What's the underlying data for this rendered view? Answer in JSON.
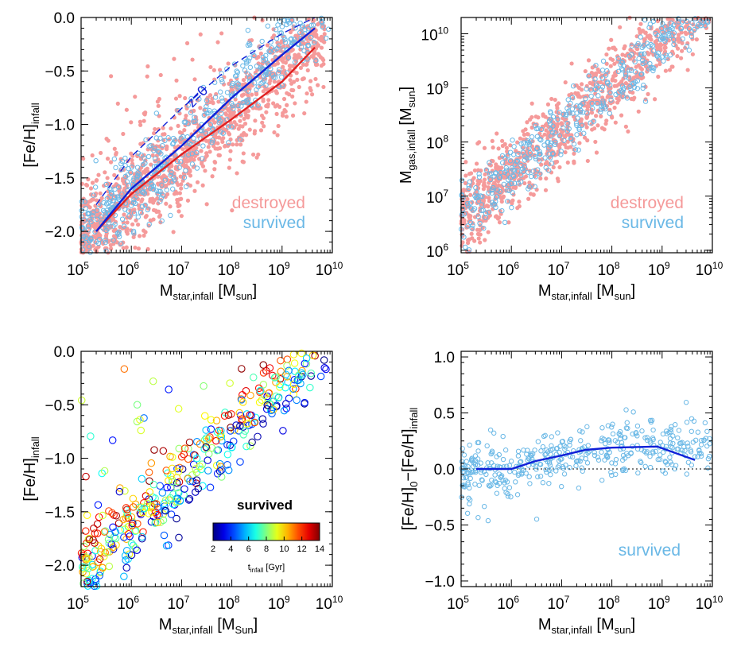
{
  "colors": {
    "destroyed": "#f59a9a",
    "survived": "#6ab8e6",
    "median_destroyed": "#e02020",
    "median_survived": "#1020d8",
    "line_z0": "#1020d8"
  },
  "panels": {
    "top_left": {
      "ylabel": "[Fe/H]",
      "ylabel_sub": "infall",
      "xlabel": "M",
      "xlabel_sub": "star,infall",
      "xlabel_unit": " [M",
      "xlabel_unit_sub": "sun",
      "xlabel_close": "]",
      "legend_destroyed": "destroyed",
      "legend_survived": "survived",
      "annotation": "z=0",
      "yticks": [
        "0.0",
        "−0.5",
        "−1.0",
        "−1.5",
        "−2.0"
      ],
      "xticks_base": [
        "10",
        "10",
        "10",
        "10",
        "10",
        "10"
      ],
      "xticks_exp": [
        "5",
        "6",
        "7",
        "8",
        "9",
        "10"
      ]
    },
    "top_right": {
      "ylabel": "M",
      "ylabel_sub": "gas,infall",
      "ylabel_unit": " [M",
      "ylabel_unit_sub": "sun",
      "ylabel_close": "]",
      "xlabel": "M",
      "xlabel_sub": "star,infall",
      "xlabel_unit": " [M",
      "xlabel_unit_sub": "sun",
      "xlabel_close": "]",
      "legend_destroyed": "destroyed",
      "legend_survived": "survived",
      "yticks_base": [
        "10",
        "10",
        "10",
        "10",
        "10"
      ],
      "yticks_exp": [
        "6",
        "7",
        "8",
        "9",
        "10"
      ],
      "xticks_base": [
        "10",
        "10",
        "10",
        "10",
        "10",
        "10"
      ],
      "xticks_exp": [
        "5",
        "6",
        "7",
        "8",
        "9",
        "10"
      ]
    },
    "bottom_left": {
      "ylabel": "[Fe/H]",
      "ylabel_sub": "infall",
      "xlabel": "M",
      "xlabel_sub": "star,infall",
      "xlabel_unit": " [M",
      "xlabel_unit_sub": "Sun",
      "xlabel_close": "]",
      "legend_survived": "survived",
      "colorbar_ticks": [
        "2",
        "4",
        "6",
        "8",
        "10",
        "12",
        "14"
      ],
      "colorbar_label": "t",
      "colorbar_label_sub": "infall",
      "colorbar_label_unit": " [Gyr]",
      "yticks": [
        "0.0",
        "−0.5",
        "−1.0",
        "−1.5",
        "−2.0"
      ],
      "xticks_base": [
        "10",
        "10",
        "10",
        "10",
        "10",
        "10"
      ],
      "xticks_exp": [
        "5",
        "6",
        "7",
        "8",
        "9",
        "10"
      ]
    },
    "bottom_right": {
      "ylabel": "[Fe/H]",
      "ylabel_sub0": "0",
      "ylabel_mid": "−[Fe/H]",
      "ylabel_sub": "infall",
      "xlabel": "M",
      "xlabel_sub": "star,infall",
      "xlabel_unit": " [M",
      "xlabel_unit_sub": "sun",
      "xlabel_close": "]",
      "legend_survived": "survived",
      "yticks": [
        "1.0",
        "0.5",
        "0.0",
        "−0.5",
        "−1.0"
      ],
      "xticks_base": [
        "10",
        "10",
        "10",
        "10",
        "10",
        "10"
      ],
      "xticks_exp": [
        "5",
        "6",
        "7",
        "8",
        "9",
        "10"
      ]
    }
  },
  "chart_data": [
    {
      "type": "scatter",
      "panel": "top_left",
      "xlabel": "M_star,infall [M_sun]",
      "ylabel": "[Fe/H]_infall",
      "xscale": "log",
      "xlim": [
        100000,
        10000000000
      ],
      "ylim": [
        -2.2,
        0.0
      ],
      "legend": [
        "destroyed",
        "survived"
      ],
      "legend_placement": "bottom-right",
      "annotation": "z=0",
      "series": [
        {
          "name": "destroyed",
          "marker": "filled-circle",
          "relation": "[Fe/H] rises from about -2.0 at 10^5.3 to about -0.3 at 10^9.6 with scatter ~0.25 dex"
        },
        {
          "name": "survived",
          "marker": "open-circle",
          "relation": "[Fe/H] rises from about -2.0 at 10^5.3 to about -0.1 at 10^9.6"
        }
      ],
      "lines": [
        {
          "kind": "median-destroyed",
          "x": [
            200000,
            1000000,
            10000000,
            100000000,
            1000000000,
            4500000000
          ],
          "y": [
            -2.0,
            -1.65,
            -1.28,
            -0.95,
            -0.6,
            -0.28
          ]
        },
        {
          "kind": "median-survived",
          "x": [
            200000,
            1000000,
            10000000,
            100000000,
            1000000000,
            4500000000
          ],
          "y": [
            -2.0,
            -1.6,
            -1.2,
            -0.75,
            -0.35,
            -0.1
          ]
        },
        {
          "kind": "z=0-dashed",
          "x": [
            200000,
            1000000,
            10000000,
            100000000,
            1000000000,
            4500000000
          ],
          "y": [
            -1.75,
            -1.3,
            -0.85,
            -0.45,
            -0.15,
            0.0
          ]
        }
      ]
    },
    {
      "type": "scatter",
      "panel": "top_right",
      "xlabel": "M_star,infall [M_sun]",
      "ylabel": "M_gas,infall [M_sun]",
      "xscale": "log",
      "yscale": "log",
      "xlim": [
        100000,
        10000000000
      ],
      "ylim": [
        900000,
        20000000000
      ],
      "legend": [
        "destroyed",
        "survived"
      ],
      "legend_placement": "bottom-right",
      "series": [
        {
          "name": "destroyed",
          "marker": "filled-circle",
          "relation": "log Mgas approx 0.8*log Mstar + 2.6, scatter ~0.4 dex"
        },
        {
          "name": "survived",
          "marker": "open-circle",
          "relation": "log Mgas approx 0.8*log Mstar + 2.6, scatter ~0.3 dex"
        }
      ]
    },
    {
      "type": "scatter",
      "panel": "bottom_left",
      "xlabel": "M_star,infall [M_Sun]",
      "ylabel": "[Fe/H]_infall",
      "xscale": "log",
      "xlim": [
        100000,
        10000000000
      ],
      "ylim": [
        -2.2,
        0.0
      ],
      "colorbar": {
        "label": "t_infall [Gyr]",
        "range": [
          2,
          14
        ],
        "ticks": [
          2,
          4,
          6,
          8,
          10,
          12,
          14
        ],
        "colormap": "jet"
      },
      "series": [
        {
          "name": "survived",
          "marker": "open-circle",
          "color_by": "t_infall",
          "relation": "[Fe/H] rises from about -2.0 at 10^5.2 to about -0.1 at 10^9.5; later infall (red) sits at higher [Fe/H]"
        }
      ]
    },
    {
      "type": "scatter",
      "panel": "bottom_right",
      "xlabel": "M_star,infall [M_sun]",
      "ylabel": "[Fe/H]_0 - [Fe/H]_infall",
      "xscale": "log",
      "xlim": [
        100000,
        10000000000
      ],
      "ylim": [
        -1.05,
        1.05
      ],
      "reference_line": {
        "y": 0.0,
        "style": "dotted"
      },
      "series": [
        {
          "name": "survived",
          "marker": "open-circle",
          "relation": "scatter around 0 at low mass, rising to ~0.2 above 10^7"
        }
      ],
      "lines": [
        {
          "kind": "median",
          "x": [
            200000,
            1000000,
            3000000,
            10000000,
            30000000,
            100000000,
            800000000,
            4500000000
          ],
          "y": [
            0.0,
            0.0,
            0.07,
            0.12,
            0.17,
            0.19,
            0.2,
            0.08
          ]
        }
      ]
    }
  ]
}
